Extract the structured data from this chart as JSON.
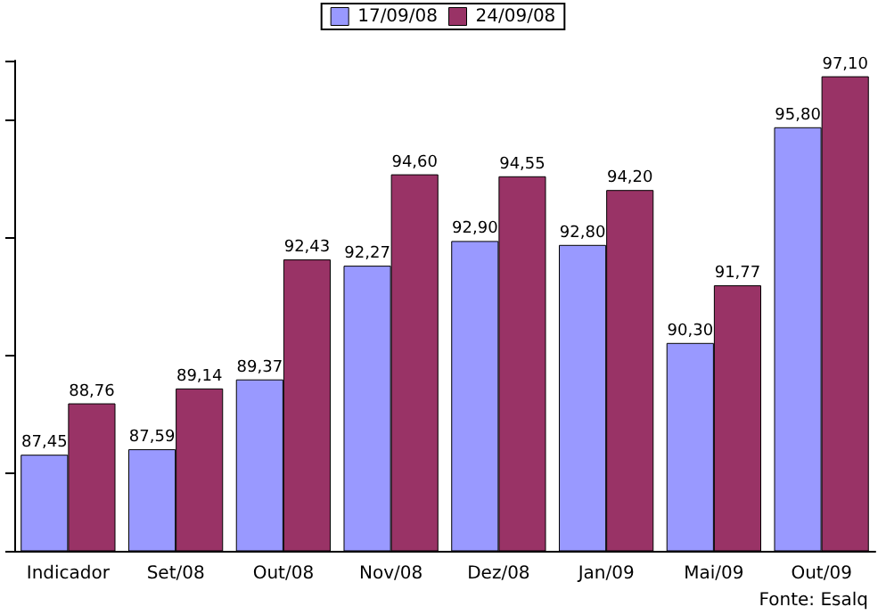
{
  "chart_data": {
    "type": "bar",
    "categories": [
      "Indicador",
      "Set/08",
      "Out/08",
      "Nov/08",
      "Dez/08",
      "Jan/09",
      "Mai/09",
      "Out/09"
    ],
    "series": [
      {
        "name": "17/09/08",
        "color": "#9999ff",
        "values": [
          87.45,
          87.59,
          89.37,
          92.27,
          92.9,
          92.8,
          90.3,
          95.8
        ],
        "value_labels": [
          "87,45",
          "87,59",
          "89,37",
          "92,27",
          "92,90",
          "92,80",
          "90,30",
          "95,80"
        ]
      },
      {
        "name": "24/09/08",
        "color": "#993366",
        "values": [
          88.76,
          89.14,
          92.43,
          94.6,
          94.55,
          94.2,
          91.77,
          97.1
        ],
        "value_labels": [
          "88,76",
          "89,14",
          "92,43",
          "94,60",
          "94,55",
          "94,20",
          "91,77",
          "97,10"
        ]
      }
    ],
    "annotations": [
      "Fonte: Esalq"
    ],
    "ylim": [
      85,
      97.5
    ],
    "legend": "top",
    "grid": false,
    "tick_labels": "x"
  }
}
